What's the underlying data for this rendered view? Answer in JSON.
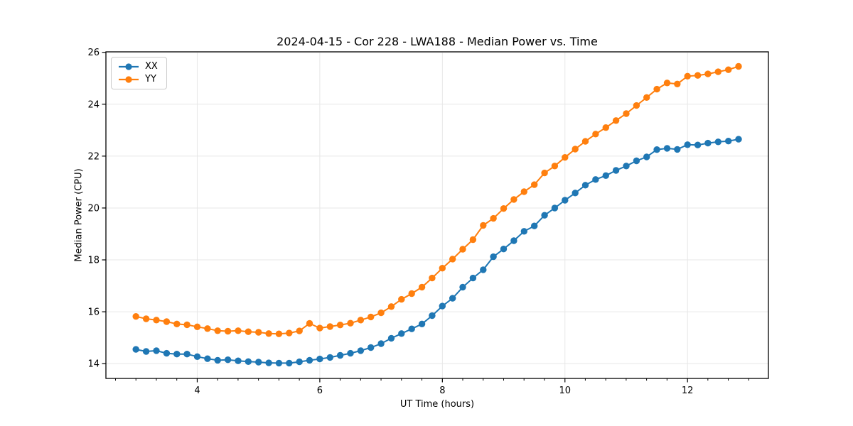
{
  "chart_data": {
    "type": "line",
    "title": "2024-04-15 - Cor 228 - LWA188 - Median Power vs. Time",
    "xlabel": "UT Time (hours)",
    "ylabel": "Median Power (CPU)",
    "xlim": [
      2.51,
      13.32
    ],
    "ylim": [
      13.43,
      26.02
    ],
    "xticks": [
      4,
      6,
      8,
      10,
      12
    ],
    "yticks": [
      14,
      16,
      18,
      20,
      22,
      24,
      26
    ],
    "x_minor_step": 0.3333,
    "grid": true,
    "grid_color": "#e7e7e7",
    "legend_position": "upper left",
    "x": [
      3.0,
      3.167,
      3.333,
      3.5,
      3.667,
      3.833,
      4.0,
      4.167,
      4.333,
      4.5,
      4.667,
      4.833,
      5.0,
      5.167,
      5.333,
      5.5,
      5.667,
      5.833,
      6.0,
      6.167,
      6.333,
      6.5,
      6.667,
      6.833,
      7.0,
      7.167,
      7.333,
      7.5,
      7.667,
      7.833,
      8.0,
      8.167,
      8.333,
      8.5,
      8.667,
      8.833,
      9.0,
      9.167,
      9.333,
      9.5,
      9.667,
      9.833,
      10.0,
      10.167,
      10.333,
      10.5,
      10.667,
      10.833,
      11.0,
      11.167,
      11.333,
      11.5,
      11.667,
      11.833,
      12.0,
      12.167,
      12.333,
      12.5,
      12.667,
      12.833
    ],
    "series": [
      {
        "name": "XX",
        "color": "#1f77b4",
        "values": [
          14.55,
          14.47,
          14.5,
          14.4,
          14.37,
          14.37,
          14.27,
          14.19,
          14.13,
          14.15,
          14.11,
          14.08,
          14.06,
          14.03,
          14.02,
          14.02,
          14.07,
          14.13,
          14.18,
          14.24,
          14.32,
          14.4,
          14.5,
          14.62,
          14.77,
          14.98,
          15.16,
          15.34,
          15.53,
          15.85,
          16.22,
          16.52,
          16.95,
          17.3,
          17.62,
          18.12,
          18.42,
          18.74,
          19.1,
          19.31,
          19.72,
          20.0,
          20.3,
          20.58,
          20.88,
          21.1,
          21.25,
          21.45,
          21.62,
          21.82,
          21.97,
          22.25,
          22.3,
          22.26,
          22.44,
          22.43,
          22.5,
          22.55,
          22.58,
          22.65
        ]
      },
      {
        "name": "YY",
        "color": "#ff7f0e",
        "values": [
          15.82,
          15.73,
          15.68,
          15.62,
          15.53,
          15.5,
          15.42,
          15.35,
          15.27,
          15.25,
          15.27,
          15.23,
          15.21,
          15.16,
          15.15,
          15.18,
          15.26,
          15.55,
          15.37,
          15.43,
          15.49,
          15.56,
          15.68,
          15.8,
          15.96,
          16.2,
          16.48,
          16.7,
          16.95,
          17.3,
          17.68,
          18.03,
          18.41,
          18.78,
          19.33,
          19.6,
          19.98,
          20.33,
          20.63,
          20.9,
          21.35,
          21.62,
          21.95,
          22.27,
          22.57,
          22.85,
          23.1,
          23.37,
          23.64,
          23.95,
          24.26,
          24.58,
          24.82,
          24.78,
          25.08,
          25.11,
          25.17,
          25.25,
          25.33,
          25.46
        ]
      }
    ]
  }
}
